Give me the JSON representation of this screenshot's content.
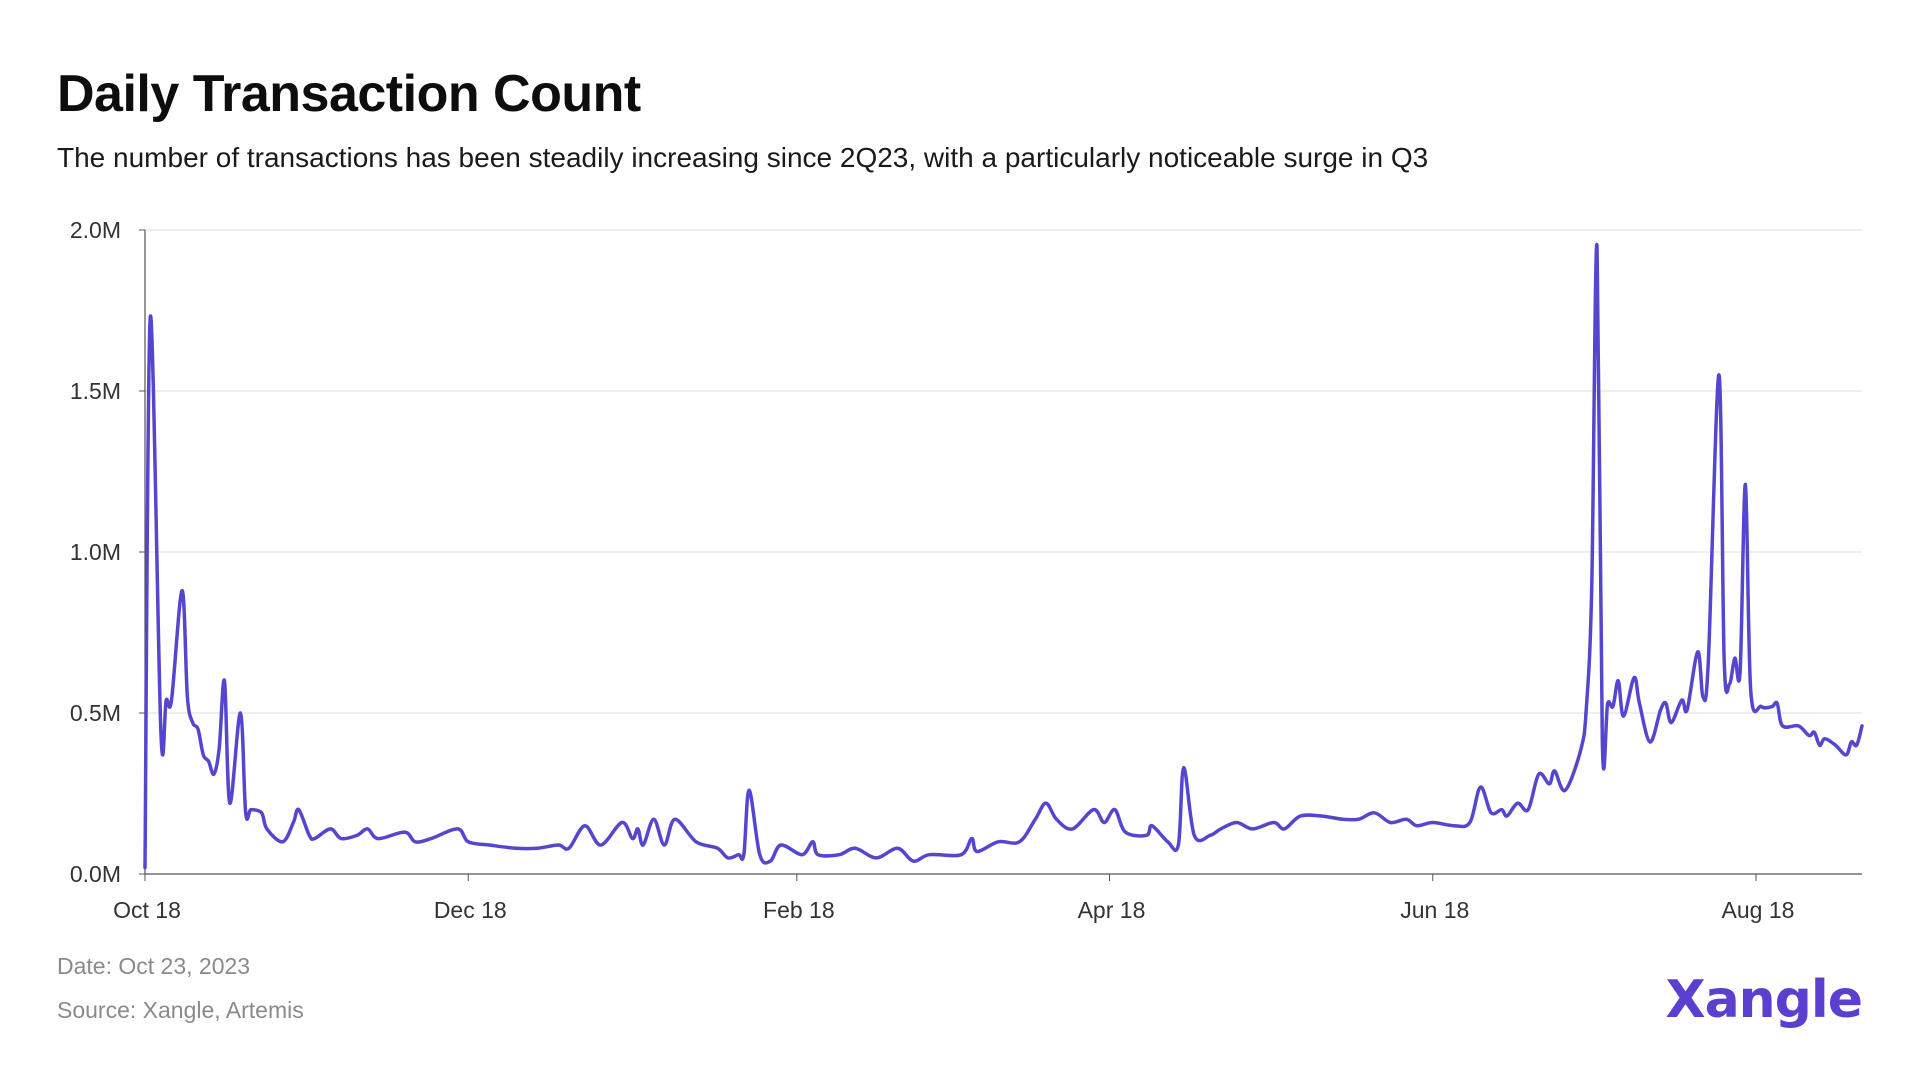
{
  "title": "Daily Transaction Count",
  "subtitle": "The number of transactions has been steadily increasing since 2Q23, with a particularly noticeable surge in Q3",
  "footer": {
    "date": "Date: Oct 23, 2023",
    "source": "Source: Xangle, Artemis"
  },
  "logo": {
    "text": "Xangle",
    "color": "#5a3fd0"
  },
  "chart_data": {
    "type": "line",
    "title": "Daily Transaction Count",
    "xlabel": "",
    "ylabel": "",
    "line_color": "#5546cf",
    "grid": true,
    "xlim": [
      "2022-10-18",
      "2023-09-07"
    ],
    "ylim": [
      0,
      2000000
    ],
    "y_ticks": [
      {
        "value": 0,
        "label": "0.0M"
      },
      {
        "value": 500000,
        "label": "0.5M"
      },
      {
        "value": 1000000,
        "label": "1.0M"
      },
      {
        "value": 1500000,
        "label": "1.5M"
      },
      {
        "value": 2000000,
        "label": "2.0M"
      }
    ],
    "x_ticks": [
      {
        "date": "2022-10-18",
        "label": "Oct 18"
      },
      {
        "date": "2022-12-18",
        "label": "Dec 18"
      },
      {
        "date": "2023-02-18",
        "label": "Feb 18"
      },
      {
        "date": "2023-04-18",
        "label": "Apr 18"
      },
      {
        "date": "2023-06-18",
        "label": "Jun 18"
      },
      {
        "date": "2023-08-18",
        "label": "Aug 18"
      }
    ],
    "series": [
      {
        "points": [
          [
            "2022-10-18",
            20000
          ],
          [
            "2022-10-19",
            1730000
          ],
          [
            "2022-10-21",
            440000
          ],
          [
            "2022-10-22",
            540000
          ],
          [
            "2022-10-23",
            540000
          ],
          [
            "2022-10-25",
            880000
          ],
          [
            "2022-10-26",
            550000
          ],
          [
            "2022-10-27",
            470000
          ],
          [
            "2022-10-28",
            450000
          ],
          [
            "2022-10-29",
            370000
          ],
          [
            "2022-10-30",
            350000
          ],
          [
            "2022-10-31",
            310000
          ],
          [
            "2022-11-01",
            390000
          ],
          [
            "2022-11-02",
            600000
          ],
          [
            "2022-11-03",
            220000
          ],
          [
            "2022-11-05",
            500000
          ],
          [
            "2022-11-06",
            190000
          ],
          [
            "2022-11-07",
            200000
          ],
          [
            "2022-11-09",
            190000
          ],
          [
            "2022-11-10",
            140000
          ],
          [
            "2022-11-13",
            100000
          ],
          [
            "2022-11-15",
            160000
          ],
          [
            "2022-11-16",
            200000
          ],
          [
            "2022-11-18",
            120000
          ],
          [
            "2022-11-19",
            110000
          ],
          [
            "2022-11-22",
            140000
          ],
          [
            "2022-11-24",
            110000
          ],
          [
            "2022-11-27",
            120000
          ],
          [
            "2022-11-29",
            140000
          ],
          [
            "2022-12-01",
            110000
          ],
          [
            "2022-12-06",
            130000
          ],
          [
            "2022-12-08",
            100000
          ],
          [
            "2022-12-11",
            110000
          ],
          [
            "2022-12-16",
            140000
          ],
          [
            "2022-12-18",
            100000
          ],
          [
            "2022-12-22",
            90000
          ],
          [
            "2022-12-27",
            80000
          ],
          [
            "2022-12-31",
            80000
          ],
          [
            "2023-01-04",
            90000
          ],
          [
            "2023-01-06",
            80000
          ],
          [
            "2023-01-09",
            150000
          ],
          [
            "2023-01-12",
            90000
          ],
          [
            "2023-01-16",
            160000
          ],
          [
            "2023-01-18",
            110000
          ],
          [
            "2023-01-19",
            140000
          ],
          [
            "2023-01-20",
            90000
          ],
          [
            "2023-01-22",
            170000
          ],
          [
            "2023-01-24",
            90000
          ],
          [
            "2023-01-26",
            170000
          ],
          [
            "2023-01-30",
            100000
          ],
          [
            "2023-02-03",
            80000
          ],
          [
            "2023-02-05",
            50000
          ],
          [
            "2023-02-07",
            60000
          ],
          [
            "2023-02-08",
            60000
          ],
          [
            "2023-02-09",
            260000
          ],
          [
            "2023-02-11",
            60000
          ],
          [
            "2023-02-13",
            40000
          ],
          [
            "2023-02-15",
            90000
          ],
          [
            "2023-02-19",
            60000
          ],
          [
            "2023-02-21",
            100000
          ],
          [
            "2023-02-22",
            60000
          ],
          [
            "2023-02-26",
            60000
          ],
          [
            "2023-03-01",
            80000
          ],
          [
            "2023-03-05",
            50000
          ],
          [
            "2023-03-09",
            80000
          ],
          [
            "2023-03-12",
            40000
          ],
          [
            "2023-03-15",
            60000
          ],
          [
            "2023-03-21",
            60000
          ],
          [
            "2023-03-23",
            110000
          ],
          [
            "2023-03-24",
            70000
          ],
          [
            "2023-03-28",
            100000
          ],
          [
            "2023-04-01",
            100000
          ],
          [
            "2023-04-04",
            170000
          ],
          [
            "2023-04-06",
            220000
          ],
          [
            "2023-04-08",
            170000
          ],
          [
            "2023-04-11",
            140000
          ],
          [
            "2023-04-15",
            200000
          ],
          [
            "2023-04-17",
            160000
          ],
          [
            "2023-04-19",
            200000
          ],
          [
            "2023-04-21",
            130000
          ],
          [
            "2023-04-25",
            120000
          ],
          [
            "2023-04-26",
            150000
          ],
          [
            "2023-04-29",
            100000
          ],
          [
            "2023-05-01",
            90000
          ],
          [
            "2023-05-02",
            330000
          ],
          [
            "2023-05-04",
            120000
          ],
          [
            "2023-05-07",
            120000
          ],
          [
            "2023-05-09",
            140000
          ],
          [
            "2023-05-12",
            160000
          ],
          [
            "2023-05-15",
            140000
          ],
          [
            "2023-05-19",
            160000
          ],
          [
            "2023-05-21",
            140000
          ],
          [
            "2023-05-24",
            180000
          ],
          [
            "2023-05-28",
            180000
          ],
          [
            "2023-06-01",
            170000
          ],
          [
            "2023-06-04",
            170000
          ],
          [
            "2023-06-07",
            190000
          ],
          [
            "2023-06-10",
            160000
          ],
          [
            "2023-06-13",
            170000
          ],
          [
            "2023-06-15",
            150000
          ],
          [
            "2023-06-18",
            160000
          ],
          [
            "2023-06-22",
            150000
          ],
          [
            "2023-06-25",
            160000
          ],
          [
            "2023-06-27",
            270000
          ],
          [
            "2023-06-29",
            190000
          ],
          [
            "2023-07-01",
            200000
          ],
          [
            "2023-07-02",
            180000
          ],
          [
            "2023-07-04",
            220000
          ],
          [
            "2023-07-06",
            200000
          ],
          [
            "2023-07-08",
            310000
          ],
          [
            "2023-07-10",
            280000
          ],
          [
            "2023-07-11",
            320000
          ],
          [
            "2023-07-13",
            260000
          ],
          [
            "2023-07-16",
            390000
          ],
          [
            "2023-07-17",
            520000
          ],
          [
            "2023-07-18",
            890000
          ],
          [
            "2023-07-19",
            1950000
          ],
          [
            "2023-07-20",
            410000
          ],
          [
            "2023-07-21",
            530000
          ],
          [
            "2023-07-22",
            520000
          ],
          [
            "2023-07-23",
            600000
          ],
          [
            "2023-07-24",
            490000
          ],
          [
            "2023-07-26",
            610000
          ],
          [
            "2023-07-27",
            530000
          ],
          [
            "2023-07-29",
            410000
          ],
          [
            "2023-07-31",
            510000
          ],
          [
            "2023-08-01",
            530000
          ],
          [
            "2023-08-02",
            470000
          ],
          [
            "2023-08-04",
            540000
          ],
          [
            "2023-08-05",
            510000
          ],
          [
            "2023-08-07",
            690000
          ],
          [
            "2023-08-08",
            550000
          ],
          [
            "2023-08-09",
            660000
          ],
          [
            "2023-08-11",
            1550000
          ],
          [
            "2023-08-12",
            660000
          ],
          [
            "2023-08-13",
            590000
          ],
          [
            "2023-08-14",
            670000
          ],
          [
            "2023-08-15",
            630000
          ],
          [
            "2023-08-16",
            1210000
          ],
          [
            "2023-08-17",
            570000
          ],
          [
            "2023-08-19",
            520000
          ],
          [
            "2023-08-21",
            520000
          ],
          [
            "2023-08-22",
            530000
          ],
          [
            "2023-08-23",
            460000
          ],
          [
            "2023-08-26",
            460000
          ],
          [
            "2023-08-28",
            430000
          ],
          [
            "2023-08-29",
            440000
          ],
          [
            "2023-08-30",
            400000
          ],
          [
            "2023-08-31",
            420000
          ],
          [
            "2023-09-02",
            400000
          ],
          [
            "2023-09-04",
            370000
          ],
          [
            "2023-09-05",
            410000
          ],
          [
            "2023-09-06",
            400000
          ],
          [
            "2023-09-07",
            460000
          ]
        ]
      }
    ]
  }
}
